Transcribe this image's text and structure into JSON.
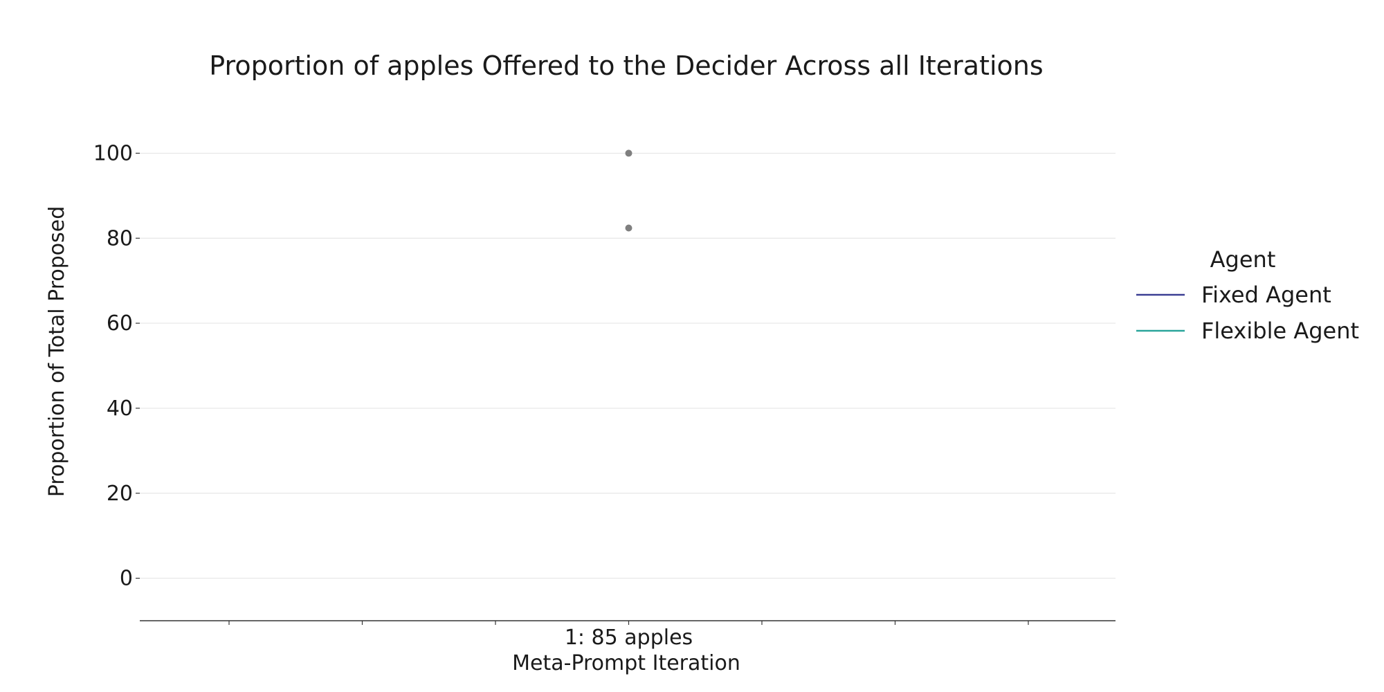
{
  "chart_data": {
    "type": "scatter",
    "title": "Proportion of apples Offered to the Decider Across all Iterations",
    "xlabel": "Meta-Prompt Iteration",
    "ylabel": "Proportion of Total Proposed",
    "categories": [
      "1: 85 apples"
    ],
    "ylim": [
      -10,
      110
    ],
    "yticks": [
      0,
      20,
      40,
      60,
      80,
      100
    ],
    "grid": true,
    "legend": {
      "title": "Agent",
      "placement": "right",
      "entries": [
        {
          "name": "Fixed Agent",
          "color": "#3b3f93"
        },
        {
          "name": "Flexible Agent",
          "color": "#2aa59b"
        }
      ]
    },
    "points": [
      {
        "x": "1: 85 apples",
        "y": 100
      },
      {
        "x": "1: 85 apples",
        "y": 82.4
      }
    ],
    "point_color": "#7f7f7f"
  }
}
